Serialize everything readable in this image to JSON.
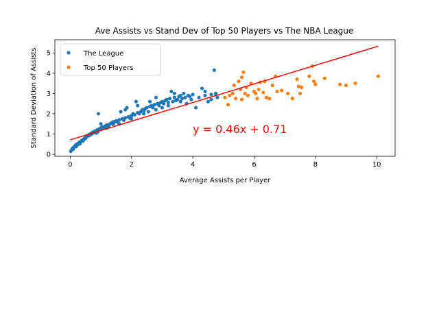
{
  "chart_data": {
    "type": "scatter",
    "title": "Ave Assists vs Stand Dev of Top 50 Players vs The NBA League",
    "xlabel": "Average Assists per Player",
    "ylabel": "Standard Deviation of Assists",
    "xlim": [
      -0.5,
      10.6
    ],
    "ylim": [
      -0.1,
      5.65
    ],
    "xticks": [
      0,
      2,
      4,
      6,
      8,
      10
    ],
    "yticks": [
      0,
      1,
      2,
      3,
      4,
      5
    ],
    "grid": false,
    "legend": "top-left",
    "series": [
      {
        "name": "The League",
        "color": "#1f77b4",
        "points": [
          [
            0.02,
            0.15
          ],
          [
            0.05,
            0.22
          ],
          [
            0.08,
            0.3
          ],
          [
            0.1,
            0.25
          ],
          [
            0.12,
            0.35
          ],
          [
            0.15,
            0.4
          ],
          [
            0.18,
            0.45
          ],
          [
            0.2,
            0.38
          ],
          [
            0.22,
            0.5
          ],
          [
            0.25,
            0.48
          ],
          [
            0.28,
            0.55
          ],
          [
            0.3,
            0.6
          ],
          [
            0.32,
            0.52
          ],
          [
            0.35,
            0.62
          ],
          [
            0.38,
            0.68
          ],
          [
            0.4,
            0.7
          ],
          [
            0.42,
            0.65
          ],
          [
            0.45,
            0.75
          ],
          [
            0.48,
            0.8
          ],
          [
            0.5,
            0.78
          ],
          [
            0.52,
            0.85
          ],
          [
            0.55,
            0.88
          ],
          [
            0.58,
            0.9
          ],
          [
            0.6,
            0.95
          ],
          [
            0.62,
            0.92
          ],
          [
            0.65,
            1.0
          ],
          [
            0.68,
            0.98
          ],
          [
            0.7,
            1.05
          ],
          [
            0.72,
            1.02
          ],
          [
            0.75,
            1.1
          ],
          [
            0.78,
            1.08
          ],
          [
            0.8,
            1.12
          ],
          [
            0.82,
            1.15
          ],
          [
            0.85,
            1.05
          ],
          [
            0.88,
            1.2
          ],
          [
            0.9,
            1.18
          ],
          [
            0.92,
            2.0
          ],
          [
            0.95,
            1.25
          ],
          [
            0.98,
            1.22
          ],
          [
            1.0,
            1.3
          ],
          [
            1.05,
            1.35
          ],
          [
            1.1,
            1.28
          ],
          [
            1.15,
            1.4
          ],
          [
            1.2,
            1.45
          ],
          [
            1.25,
            1.38
          ],
          [
            1.3,
            1.5
          ],
          [
            1.35,
            1.55
          ],
          [
            1.4,
            1.48
          ],
          [
            1.45,
            1.6
          ],
          [
            1.5,
            1.65
          ],
          [
            1.55,
            1.58
          ],
          [
            1.6,
            1.7
          ],
          [
            1.65,
            2.1
          ],
          [
            1.7,
            1.75
          ],
          [
            1.75,
            1.68
          ],
          [
            1.8,
            1.8
          ],
          [
            1.85,
            2.3
          ],
          [
            1.9,
            1.85
          ],
          [
            1.95,
            1.78
          ],
          [
            2.0,
            1.9
          ],
          [
            2.05,
            2.0
          ],
          [
            2.1,
            1.95
          ],
          [
            2.15,
            2.6
          ],
          [
            2.2,
            2.05
          ],
          [
            2.25,
            2.0
          ],
          [
            2.3,
            2.1
          ],
          [
            2.35,
            2.2
          ],
          [
            2.4,
            2.15
          ],
          [
            2.45,
            2.25
          ],
          [
            2.5,
            2.3
          ],
          [
            2.55,
            2.1
          ],
          [
            2.6,
            2.35
          ],
          [
            2.65,
            2.4
          ],
          [
            2.7,
            2.3
          ],
          [
            2.75,
            2.45
          ],
          [
            2.8,
            2.8
          ],
          [
            2.85,
            2.5
          ],
          [
            2.9,
            2.4
          ],
          [
            2.95,
            2.55
          ],
          [
            3.0,
            2.6
          ],
          [
            3.05,
            2.5
          ],
          [
            3.1,
            2.65
          ],
          [
            3.15,
            2.7
          ],
          [
            3.2,
            2.55
          ],
          [
            3.25,
            2.75
          ],
          [
            3.3,
            3.1
          ],
          [
            3.35,
            2.6
          ],
          [
            3.4,
            2.8
          ],
          [
            3.45,
            2.65
          ],
          [
            3.5,
            2.7
          ],
          [
            3.55,
            2.85
          ],
          [
            3.6,
            2.9
          ],
          [
            3.65,
            2.75
          ],
          [
            3.7,
            3.0
          ],
          [
            3.75,
            2.8
          ],
          [
            3.8,
            2.5
          ],
          [
            3.85,
            2.9
          ],
          [
            3.9,
            2.85
          ],
          [
            3.95,
            2.7
          ],
          [
            4.0,
            2.95
          ],
          [
            4.1,
            2.3
          ],
          [
            4.2,
            2.8
          ],
          [
            4.3,
            3.25
          ],
          [
            4.4,
            2.9
          ],
          [
            4.5,
            2.6
          ],
          [
            4.6,
            2.95
          ],
          [
            4.7,
            4.15
          ],
          [
            4.75,
            3.0
          ],
          [
            4.8,
            2.8
          ],
          [
            0.9,
            1.1
          ],
          [
            1.2,
            1.3
          ],
          [
            1.6,
            1.5
          ],
          [
            2.0,
            1.75
          ],
          [
            2.4,
            2.0
          ],
          [
            2.8,
            2.2
          ],
          [
            3.2,
            2.4
          ],
          [
            3.6,
            2.6
          ],
          [
            1.0,
            1.5
          ],
          [
            1.4,
            1.6
          ],
          [
            1.8,
            2.2
          ],
          [
            2.2,
            2.4
          ],
          [
            2.6,
            2.6
          ],
          [
            3.0,
            2.3
          ],
          [
            3.4,
            3.0
          ],
          [
            4.4,
            3.1
          ],
          [
            4.6,
            2.7
          ]
        ]
      },
      {
        "name": "Top 50 Players",
        "color": "#ff7f0e",
        "points": [
          [
            5.05,
            2.8
          ],
          [
            5.15,
            2.45
          ],
          [
            5.2,
            2.9
          ],
          [
            5.3,
            3.0
          ],
          [
            5.35,
            3.4
          ],
          [
            5.4,
            2.75
          ],
          [
            5.5,
            3.6
          ],
          [
            5.55,
            3.2
          ],
          [
            5.6,
            3.8
          ],
          [
            5.6,
            2.7
          ],
          [
            5.65,
            4.05
          ],
          [
            5.7,
            3.0
          ],
          [
            5.75,
            3.3
          ],
          [
            5.8,
            2.9
          ],
          [
            5.9,
            3.5
          ],
          [
            6.0,
            3.1
          ],
          [
            6.05,
            3.0
          ],
          [
            6.1,
            2.75
          ],
          [
            6.15,
            3.2
          ],
          [
            6.2,
            3.55
          ],
          [
            6.3,
            3.05
          ],
          [
            6.35,
            3.6
          ],
          [
            6.4,
            2.8
          ],
          [
            6.5,
            2.75
          ],
          [
            6.6,
            3.4
          ],
          [
            6.7,
            3.85
          ],
          [
            6.75,
            3.1
          ],
          [
            6.9,
            3.15
          ],
          [
            7.1,
            3.0
          ],
          [
            7.25,
            2.75
          ],
          [
            7.4,
            3.7
          ],
          [
            7.45,
            3.35
          ],
          [
            7.5,
            3.0
          ],
          [
            7.55,
            3.3
          ],
          [
            7.8,
            3.85
          ],
          [
            7.9,
            4.35
          ],
          [
            7.95,
            3.6
          ],
          [
            8.0,
            3.45
          ],
          [
            8.3,
            3.75
          ],
          [
            8.8,
            3.45
          ],
          [
            9.0,
            3.4
          ],
          [
            9.3,
            3.5
          ],
          [
            10.05,
            3.85
          ]
        ]
      }
    ],
    "fit_line": {
      "color": "#ff0000",
      "slope": 0.46,
      "intercept": 0.71,
      "x_range": [
        0.0,
        10.05
      ]
    },
    "annotations": [
      {
        "text": "y = 0.46x + 0.71",
        "x": 4.0,
        "y": 1.05,
        "color": "#ff0000"
      }
    ]
  }
}
